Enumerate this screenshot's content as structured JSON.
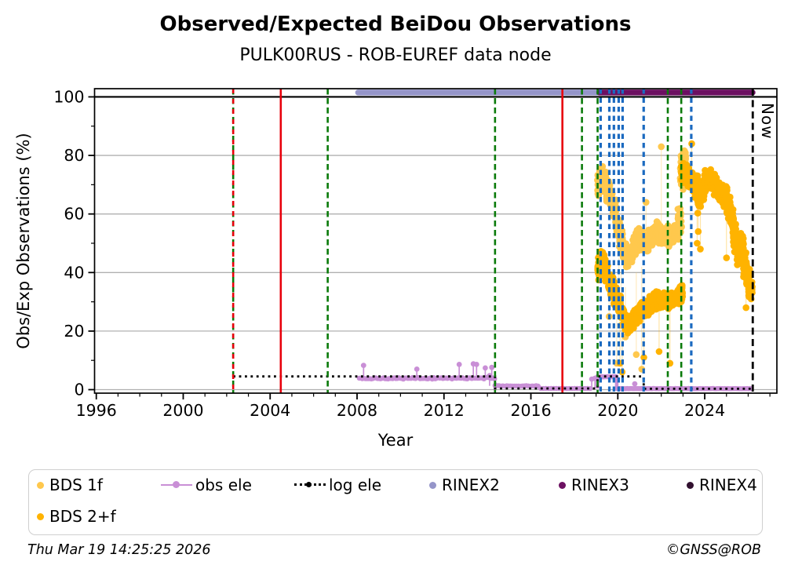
{
  "footer": {
    "timestamp": "Thu Mar 19 14:25:25 2026",
    "copyright": "©GNSS@ROB"
  },
  "legend": {
    "items": [
      {
        "label": "BDS 1f",
        "color": "#FFC84D",
        "marker": "dot"
      },
      {
        "label": "obs ele",
        "color": "#C98FD6",
        "marker": "line-dot"
      },
      {
        "label": "log ele",
        "color": "#000000",
        "marker": "dotted-line-dot"
      },
      {
        "label": "RINEX2",
        "color": "#9595C9",
        "marker": "dot"
      },
      {
        "label": "RINEX3",
        "color": "#6C1061",
        "marker": "dot"
      },
      {
        "label": "RINEX4",
        "color": "#31102F",
        "marker": "dot"
      },
      {
        "label": "BDS 2+f",
        "color": "#FFB300",
        "marker": "dot"
      }
    ]
  },
  "chart_data": {
    "type": "scatter",
    "title": "Observed/Expected BeiDou Observations",
    "subtitle": "PULK00RUS - ROB-EUREF data node",
    "xlabel": "Year",
    "ylabel": "Obs/Exp Observations (%)",
    "axes": {
      "xlim": [
        1995.92,
        2027.32
      ],
      "ylim": [
        -1.2,
        102.8
      ],
      "xticks_major": [
        1996,
        2000,
        2004,
        2008,
        2012,
        2016,
        2020,
        2024
      ],
      "xtick_minor_step": 1,
      "yticks_major": [
        0,
        20,
        40,
        60,
        80,
        100
      ],
      "yticks_minor": [
        10,
        30,
        50,
        70,
        90
      ],
      "reference_line_y": 100,
      "grid": true,
      "grid_color": "#B0B0B0"
    },
    "now_line": {
      "x": 2026.21,
      "label": "Now",
      "color": "#000000"
    },
    "event_lines": {
      "green_dashed": [
        2002.3,
        2006.65,
        2014.35,
        2018.35,
        2019.07,
        2022.3,
        2022.92
      ],
      "red_solid": [
        2004.49,
        2017.45
      ],
      "red_dashed_over_green": [
        2002.3
      ],
      "blue_dashed": [
        2019.21,
        2019.61,
        2019.82,
        2020.04,
        2020.22,
        2021.19,
        2023.38
      ],
      "green_color": "#0A7A0A",
      "red_color": "#E8000B",
      "blue_color": "#1B6AC0"
    },
    "series": [
      {
        "name": "RINEX2",
        "type": "span_bar",
        "color": "#9595C9",
        "y": 101.5,
        "x0": 2008.05,
        "x1": 2019.15,
        "lw": 7.5
      },
      {
        "name": "RINEX3",
        "type": "span_bar",
        "color": "#6C1061",
        "y": 101.5,
        "x0": 2019.15,
        "x1": 2026.2,
        "lw": 7.5
      },
      {
        "name": "BDS 1f",
        "type": "scatter_band",
        "color": "#FFC84D",
        "radius": 4.3,
        "dots_per_point": 34,
        "x_halfwidth": 0.085,
        "band": [
          [
            2019.15,
            70,
            5
          ],
          [
            2019.25,
            73,
            4
          ],
          [
            2019.4,
            71,
            4
          ],
          [
            2019.55,
            68,
            4
          ],
          [
            2019.7,
            65,
            4
          ],
          [
            2019.85,
            61,
            4
          ],
          [
            2020.0,
            56,
            4
          ],
          [
            2020.15,
            51,
            4
          ],
          [
            2020.3,
            47,
            4
          ],
          [
            2020.45,
            44,
            3.5
          ],
          [
            2020.6,
            46,
            3.5
          ],
          [
            2020.75,
            49,
            4
          ],
          [
            2020.9,
            51,
            4
          ],
          [
            2021.05,
            52,
            4
          ],
          [
            2021.2,
            51,
            4
          ],
          [
            2021.35,
            50,
            3.5
          ],
          [
            2021.5,
            52,
            3.5
          ],
          [
            2021.65,
            53,
            3.5
          ],
          [
            2021.8,
            54,
            3.5
          ],
          [
            2021.95,
            53,
            3.5
          ],
          [
            2022.1,
            52,
            3.5
          ],
          [
            2022.25,
            53,
            3.5
          ],
          [
            2022.4,
            52,
            3.5
          ],
          [
            2022.55,
            53,
            3.5
          ],
          [
            2022.7,
            54,
            3.5
          ],
          [
            2022.85,
            58,
            5
          ],
          [
            2022.95,
            74,
            6
          ],
          [
            2023.05,
            79,
            3
          ]
        ],
        "outliers": [
          [
            2019.6,
            25,
            38
          ],
          [
            2019.95,
            9,
            30
          ],
          [
            2020.05,
            30,
            45
          ],
          [
            2020.15,
            22,
            40
          ],
          [
            2020.35,
            18,
            35
          ],
          [
            2020.85,
            12,
            40
          ],
          [
            2021.1,
            7,
            42
          ],
          [
            2021.3,
            64,
            52
          ],
          [
            2022.0,
            83,
            54
          ]
        ]
      },
      {
        "name": "BDS 2+f",
        "type": "scatter_band",
        "color": "#FFB300",
        "radius": 4.3,
        "dots_per_point": 34,
        "x_halfwidth": 0.085,
        "band": [
          [
            2019.15,
            41,
            6
          ],
          [
            2019.3,
            44,
            5
          ],
          [
            2019.45,
            40,
            5
          ],
          [
            2019.6,
            37,
            4
          ],
          [
            2019.75,
            35,
            4
          ],
          [
            2019.9,
            32,
            4
          ],
          [
            2020.05,
            29,
            3.5
          ],
          [
            2020.2,
            26,
            3
          ],
          [
            2020.35,
            23,
            3
          ],
          [
            2020.5,
            22,
            3
          ],
          [
            2020.65,
            23,
            3
          ],
          [
            2020.8,
            25,
            3
          ],
          [
            2020.95,
            26,
            3
          ],
          [
            2021.1,
            27,
            3
          ],
          [
            2021.25,
            28,
            3
          ],
          [
            2021.4,
            28,
            3
          ],
          [
            2021.55,
            29,
            3
          ],
          [
            2021.7,
            30,
            3
          ],
          [
            2021.85,
            31,
            3
          ],
          [
            2022.0,
            30,
            3
          ],
          [
            2022.15,
            31,
            3
          ],
          [
            2022.3,
            30,
            3
          ],
          [
            2022.45,
            31,
            3
          ],
          [
            2022.6,
            31,
            3
          ],
          [
            2022.75,
            32,
            3
          ],
          [
            2022.9,
            33,
            4
          ],
          [
            2023.0,
            74,
            4
          ],
          [
            2023.1,
            75,
            3.5
          ],
          [
            2023.2,
            73,
            3.5
          ],
          [
            2023.3,
            72,
            3.5
          ],
          [
            2023.45,
            71,
            4
          ],
          [
            2023.6,
            69,
            5
          ],
          [
            2023.75,
            66,
            6
          ],
          [
            2023.9,
            68,
            5
          ],
          [
            2024.05,
            71,
            4
          ],
          [
            2024.2,
            72,
            3.5
          ],
          [
            2024.35,
            71,
            3.5
          ],
          [
            2024.5,
            70,
            4
          ],
          [
            2024.65,
            68,
            4
          ],
          [
            2024.8,
            67,
            4
          ],
          [
            2024.95,
            66,
            4
          ],
          [
            2025.1,
            63,
            5
          ],
          [
            2025.25,
            58,
            6
          ],
          [
            2025.4,
            52,
            6
          ],
          [
            2025.55,
            48,
            6
          ],
          [
            2025.7,
            49,
            5
          ],
          [
            2025.85,
            43,
            6
          ],
          [
            2026.0,
            38,
            5
          ],
          [
            2026.1,
            34,
            4
          ]
        ],
        "outliers": [
          [
            2020.1,
            9,
            25
          ],
          [
            2020.2,
            6,
            24
          ],
          [
            2021.2,
            11,
            27
          ],
          [
            2021.9,
            13,
            30
          ],
          [
            2022.4,
            9,
            30
          ],
          [
            2023.4,
            84,
            72
          ],
          [
            2023.65,
            50,
            66
          ],
          [
            2023.7,
            54,
            66
          ],
          [
            2023.8,
            48,
            67
          ],
          [
            2025.0,
            45,
            64
          ],
          [
            2025.9,
            28,
            40
          ]
        ]
      },
      {
        "name": "obs ele",
        "type": "line_markers",
        "color": "#C98FD6",
        "segments": [
          {
            "x0": 2008.1,
            "x1": 2014.35,
            "y": 3.9,
            "wiggle": 0.5,
            "lw": 2.2,
            "marker_step": 0.07
          },
          {
            "x0": 2014.35,
            "x1": 2016.4,
            "y": 1.3,
            "wiggle": 0.25,
            "lw": 2.2,
            "marker_step": 0.09
          },
          {
            "x0": 2016.45,
            "x1": 2018.75,
            "y": 0.4,
            "wiggle": 0.12,
            "lw": 1.8,
            "marker_step": 0.12
          },
          {
            "x0": 2019.07,
            "x1": 2019.95,
            "y": 4.4,
            "wiggle": 0.15,
            "lw": 4.5,
            "marker_step": 0.05,
            "drop_ends": 0.4
          },
          {
            "x0": 2019.95,
            "x1": 2026.15,
            "y": 0.35,
            "wiggle": 0.08,
            "lw": 4.0,
            "marker_step": 0.06
          }
        ],
        "spikes": [
          [
            2008.3,
            8.3,
            3.9
          ],
          [
            2010.75,
            7.0,
            3.9
          ],
          [
            2012.7,
            8.6,
            3.9
          ],
          [
            2013.35,
            8.8,
            3.9
          ],
          [
            2013.5,
            8.6,
            3.9
          ],
          [
            2013.9,
            7.4,
            3.9
          ],
          [
            2014.1,
            4.8,
            1.3
          ],
          [
            2014.2,
            7.6,
            3.9
          ],
          [
            2018.8,
            3.6,
            0.4
          ],
          [
            2018.95,
            3.9,
            0.4
          ],
          [
            2020.78,
            2.0,
            0.35
          ]
        ]
      },
      {
        "name": "log ele",
        "type": "step_line",
        "color": "#000000",
        "lw": 2.8,
        "dash": [
          2.8,
          4.6
        ],
        "points": [
          [
            2002.3,
            4.5
          ],
          [
            2014.35,
            4.5
          ],
          [
            2014.35,
            0.4
          ],
          [
            2019.07,
            0.4
          ],
          [
            2019.07,
            4.5
          ],
          [
            2021.19,
            4.5
          ],
          [
            2021.19,
            0.3
          ],
          [
            2026.15,
            0.3
          ]
        ]
      }
    ]
  }
}
